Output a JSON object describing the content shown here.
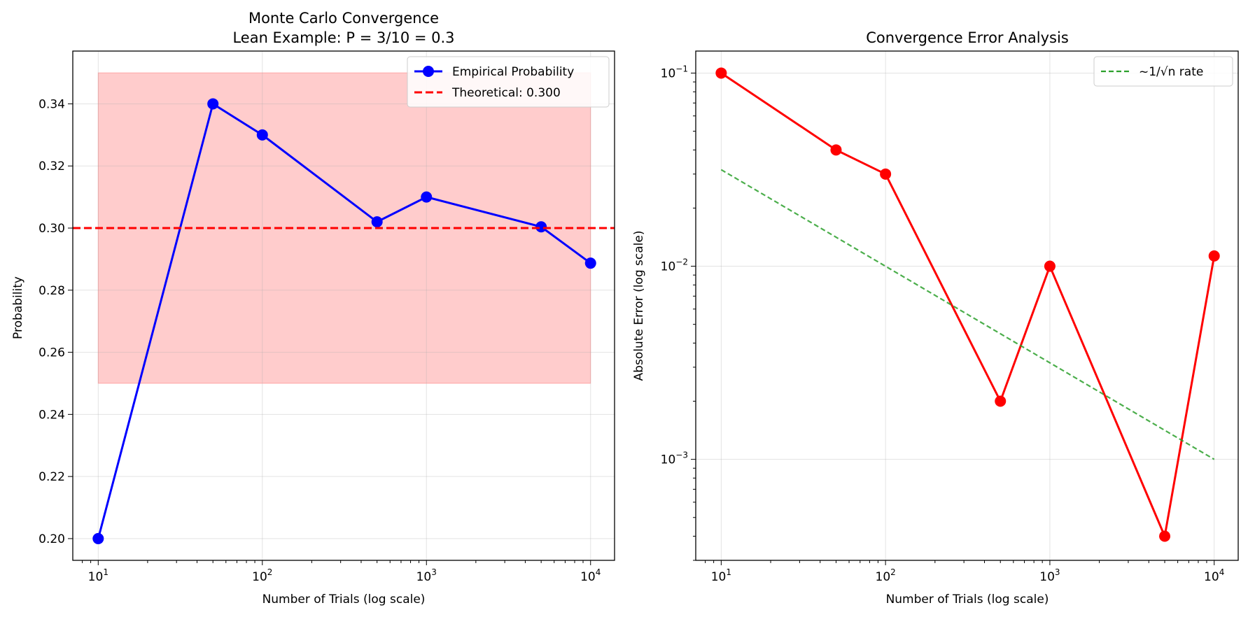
{
  "chart_data": [
    {
      "type": "line",
      "title": "Monte Carlo Convergence",
      "subtitle": "Lean Example: P = 3/10 = 0.3",
      "xlabel": "Number of Trials (log scale)",
      "ylabel": "Probability",
      "xscale": "log",
      "yscale": "linear",
      "xlim": [
        7,
        14000
      ],
      "ylim": [
        0.193,
        0.357
      ],
      "xticks": [
        10,
        100,
        1000,
        10000
      ],
      "xtick_labels": [
        {
          "base": "10",
          "exp": "1"
        },
        {
          "base": "10",
          "exp": "2"
        },
        {
          "base": "10",
          "exp": "3"
        },
        {
          "base": "10",
          "exp": "4"
        }
      ],
      "yticks": [
        0.2,
        0.22,
        0.24,
        0.26,
        0.28,
        0.3,
        0.32,
        0.34
      ],
      "ytick_labels": [
        "0.20",
        "0.22",
        "0.24",
        "0.26",
        "0.28",
        "0.30",
        "0.32",
        "0.34"
      ],
      "grid": true,
      "legend_position": "top-right",
      "band": {
        "x_range": [
          10,
          10000
        ],
        "y_range": [
          0.25,
          0.35
        ],
        "color": "#ff0000",
        "alpha": 0.2
      },
      "series": [
        {
          "name": "Empirical Probability",
          "color": "#0000ff",
          "marker": "circle",
          "x": [
            10,
            50,
            100,
            500,
            1000,
            5000,
            10000
          ],
          "y": [
            0.2,
            0.34,
            0.33,
            0.302,
            0.31,
            0.3004,
            0.2887
          ]
        },
        {
          "name": "Theoretical: 0.300",
          "color": "#ff0000",
          "style": "dashed",
          "hline": 0.3
        }
      ]
    },
    {
      "type": "line",
      "title": "Convergence Error Analysis",
      "xlabel": "Number of Trials (log scale)",
      "ylabel": "Absolute Error (log scale)",
      "xscale": "log",
      "yscale": "log",
      "xlim": [
        7,
        14000
      ],
      "ylim": [
        0.0003,
        0.13
      ],
      "xticks": [
        10,
        100,
        1000,
        10000
      ],
      "xtick_labels": [
        {
          "base": "10",
          "exp": "1"
        },
        {
          "base": "10",
          "exp": "2"
        },
        {
          "base": "10",
          "exp": "3"
        },
        {
          "base": "10",
          "exp": "4"
        }
      ],
      "yticks": [
        0.001,
        0.01,
        0.1
      ],
      "ytick_labels": [
        {
          "base": "10",
          "exp": "−3"
        },
        {
          "base": "10",
          "exp": "−2"
        },
        {
          "base": "10",
          "exp": "−1"
        }
      ],
      "grid": true,
      "legend_position": "top-right",
      "series": [
        {
          "name": "",
          "color": "#ff0000",
          "marker": "circle",
          "x": [
            10,
            50,
            100,
            500,
            1000,
            5000,
            10000
          ],
          "y": [
            0.1,
            0.04,
            0.03,
            0.002,
            0.01,
            0.0004,
            0.0113
          ]
        },
        {
          "name": "~1/√n rate",
          "color": "#2ca02c",
          "style": "dashed",
          "x": [
            10,
            10000
          ],
          "y": [
            0.0316,
            0.001
          ]
        }
      ]
    }
  ]
}
